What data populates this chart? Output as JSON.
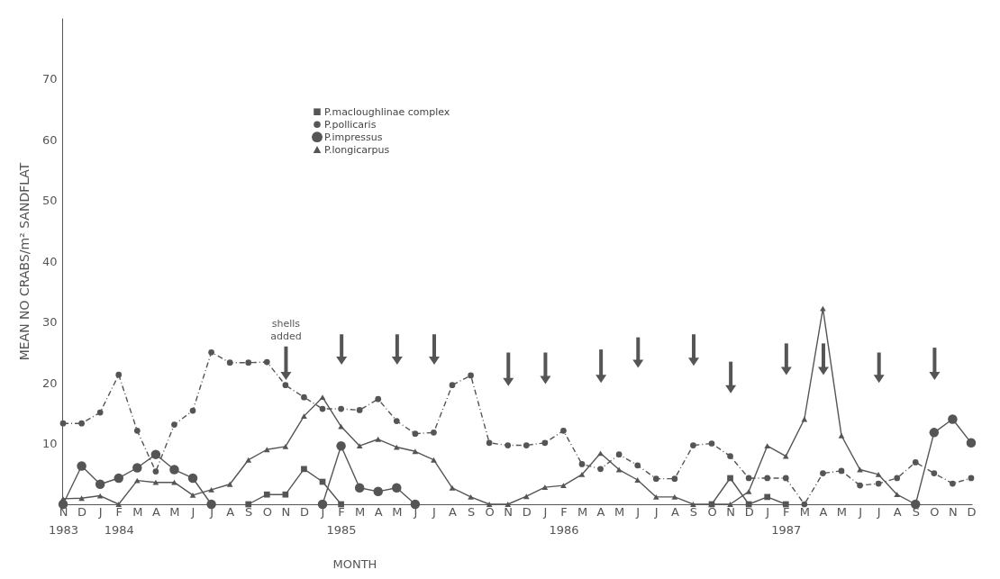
{
  "chart_data": {
    "type": "line",
    "xlabel": "MONTH",
    "ylabel": "MEAN NO CRABS/m² SANDFLAT",
    "categories": [
      "N 1983",
      "D",
      "J",
      "F 1984",
      "M",
      "A",
      "M",
      "J",
      "J",
      "A",
      "S",
      "O",
      "N",
      "D",
      "J",
      "F 1985",
      "M",
      "A",
      "M",
      "J",
      "J",
      "A",
      "S",
      "O",
      "N",
      "D",
      "J",
      "F 1986",
      "M",
      "A",
      "M",
      "J",
      "J",
      "A",
      "S",
      "O",
      "N",
      "D",
      "J",
      "F 1987",
      "M",
      "A",
      "M",
      "J",
      "J",
      "A",
      "S",
      "O",
      "N",
      "D"
    ],
    "ylim": [
      0,
      80
    ],
    "yticks": [
      10,
      20,
      30,
      40,
      50,
      60,
      70
    ],
    "grid": false,
    "legend": "top",
    "annotations": [
      "shells added"
    ],
    "series": [
      {
        "name": "P.macloughlinae complex",
        "color": "#555555",
        "marker": "square",
        "line_style": "solid",
        "values": [
          null,
          null,
          null,
          null,
          null,
          null,
          null,
          null,
          null,
          null,
          0,
          1.6,
          1.6,
          5.8,
          3.7,
          0,
          null,
          null,
          null,
          null,
          null,
          null,
          null,
          null,
          null,
          null,
          null,
          null,
          null,
          null,
          null,
          null,
          null,
          null,
          null,
          0,
          4.3,
          0,
          1.2,
          0,
          null,
          null,
          null,
          null,
          null,
          null,
          null,
          null,
          null,
          null
        ]
      },
      {
        "name": "P.pollicaris",
        "color": "#555555",
        "marker": "circle",
        "line_style": "dashed",
        "values": [
          13.3,
          13.3,
          15.1,
          21.3,
          12.1,
          5.4,
          13.1,
          15.4,
          25,
          23.3,
          23.3,
          23.4,
          19.6,
          17.6,
          15.7,
          15.7,
          15.5,
          17.3,
          13.7,
          11.6,
          11.8,
          19.6,
          21.2,
          10.1,
          9.7,
          9.7,
          10.1,
          12.1,
          6.6,
          5.8,
          8.2,
          6.4,
          4.2,
          4.2,
          9.7,
          10,
          7.9,
          4.3,
          4.3,
          4.3,
          0,
          5.1,
          5.5,
          3.1,
          3.4,
          4.3,
          6.9,
          5.1,
          3.4,
          4.3
        ]
      },
      {
        "name": "P.impressus",
        "color": "#555555",
        "marker": "circle",
        "line_style": "solid",
        "values": [
          0,
          6.3,
          3.3,
          4.3,
          6.0,
          8.2,
          5.7,
          4.3,
          0,
          null,
          null,
          null,
          null,
          null,
          0,
          9.6,
          2.7,
          2.1,
          2.7,
          0,
          null,
          null,
          null,
          null,
          null,
          null,
          null,
          null,
          null,
          null,
          null,
          null,
          null,
          null,
          null,
          null,
          null,
          null,
          null,
          null,
          null,
          null,
          null,
          null,
          null,
          null,
          0,
          11.8,
          14,
          10.1
        ]
      },
      {
        "name": "P.longicarpus",
        "color": "#555555",
        "marker": "triangle",
        "line_style": "solid",
        "values": [
          0.9,
          1.0,
          1.4,
          0,
          3.9,
          3.6,
          3.6,
          1.5,
          2.4,
          3.3,
          7.3,
          9.0,
          9.5,
          14.5,
          17.6,
          12.8,
          9.6,
          10.7,
          9.4,
          8.7,
          7.3,
          2.7,
          1.2,
          0,
          0,
          1.3,
          2.8,
          3.1,
          4.9,
          8.4,
          5.7,
          4.0,
          1.2,
          1.2,
          0,
          0,
          0,
          2.1,
          9.6,
          7.9,
          14,
          32.2,
          11.3,
          5.7,
          4.9,
          1.6,
          0,
          null,
          null,
          null
        ]
      }
    ]
  }
}
